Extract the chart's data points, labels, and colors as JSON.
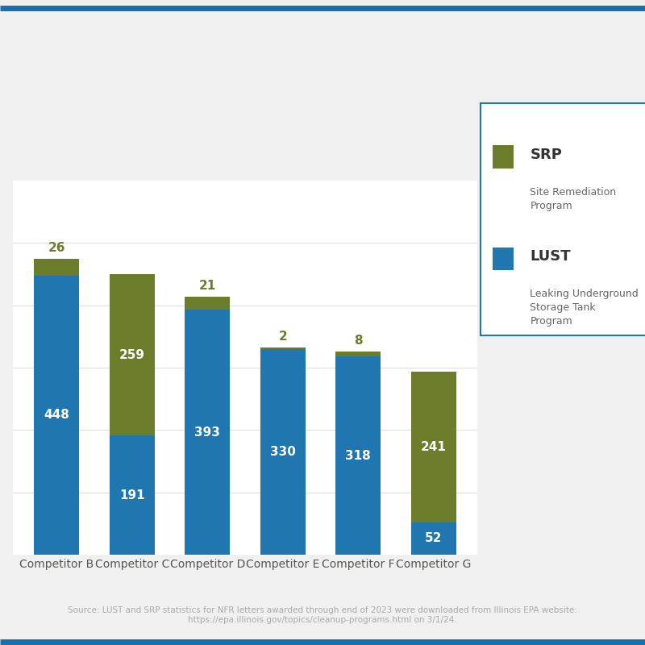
{
  "categories": [
    "Competitor B",
    "Competitor C",
    "Competitor D",
    "Competitor E",
    "Competitor F",
    "Competitor G"
  ],
  "lust_values": [
    448,
    191,
    393,
    330,
    318,
    52
  ],
  "srp_values": [
    26,
    259,
    21,
    2,
    8,
    241
  ],
  "lust_color": "#2076AE",
  "srp_color": "#6B7C2A",
  "bar_width": 0.6,
  "ylim": [
    0,
    600
  ],
  "background_color": "#FFFFFF",
  "outer_background_color": "#F0F0F0",
  "legend_border_color": "#2076AE",
  "source_text": "Source: LUST and SRP statistics for NFR letters awarded through end of 2023 were downloaded from Illinois EPA website:\nhttps://epa.illinois.gov/topics/cleanup-programs.html on 3/1/24.",
  "source_fontsize": 7.5,
  "label_fontsize": 11,
  "tick_fontsize": 10,
  "grid_color": "#DDDDDD",
  "top_border_color": "#1B6FA8",
  "srp_label_color": "#6B7C2A"
}
